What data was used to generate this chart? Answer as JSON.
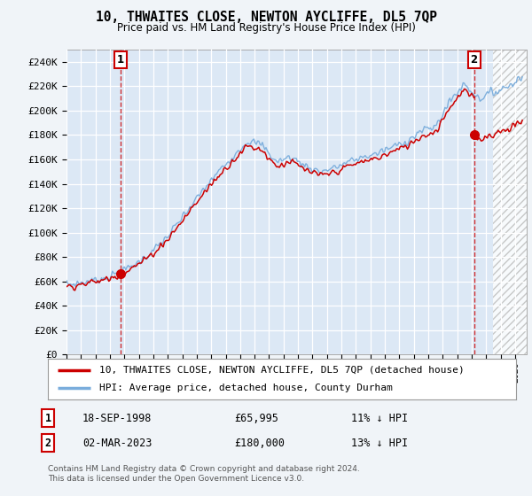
{
  "title": "10, THWAITES CLOSE, NEWTON AYCLIFFE, DL5 7QP",
  "subtitle": "Price paid vs. HM Land Registry's House Price Index (HPI)",
  "ylabel_ticks": [
    "£0",
    "£20K",
    "£40K",
    "£60K",
    "£80K",
    "£100K",
    "£120K",
    "£140K",
    "£160K",
    "£180K",
    "£200K",
    "£220K",
    "£240K"
  ],
  "ytick_vals": [
    0,
    20000,
    40000,
    60000,
    80000,
    100000,
    120000,
    140000,
    160000,
    180000,
    200000,
    220000,
    240000
  ],
  "ylim": [
    0,
    250000
  ],
  "xlim_start": 1995.2,
  "xlim_end": 2026.8,
  "hpi_color": "#7aaddc",
  "price_color": "#cc0000",
  "transaction1_year": 1998.71,
  "transaction1_price": 65995,
  "transaction2_year": 2023.16,
  "transaction2_price": 180000,
  "legend_line1": "10, THWAITES CLOSE, NEWTON AYCLIFFE, DL5 7QP (detached house)",
  "legend_line2": "HPI: Average price, detached house, County Durham",
  "transaction1_date": "18-SEP-1998",
  "transaction1_hpi_pct": "11% ↓ HPI",
  "transaction2_date": "02-MAR-2023",
  "transaction2_hpi_pct": "13% ↓ HPI",
  "footer": "Contains HM Land Registry data © Crown copyright and database right 2024.\nThis data is licensed under the Open Government Licence v3.0.",
  "background_color": "#f0f4f8",
  "plot_bg_color": "#dce8f5",
  "hatch_start_year": 2024.5
}
